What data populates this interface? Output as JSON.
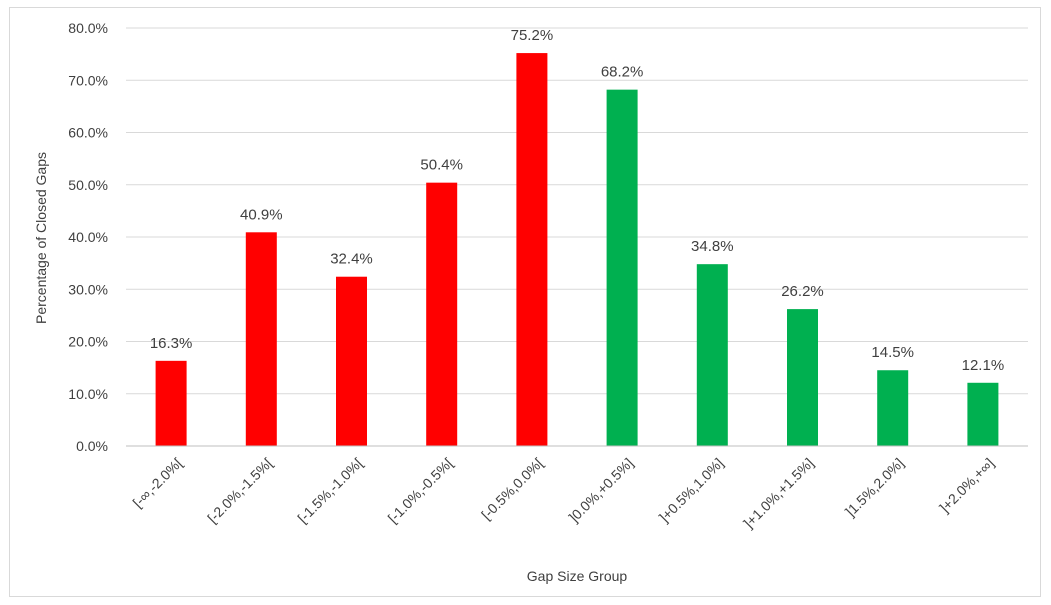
{
  "chart_data": {
    "type": "bar",
    "title": "",
    "xlabel": "Gap Size Group",
    "ylabel": "Percentage of Closed Gaps",
    "ylim": [
      0,
      80
    ],
    "y_ticks": [
      "0.0%",
      "10.0%",
      "20.0%",
      "30.0%",
      "40.0%",
      "50.0%",
      "60.0%",
      "70.0%",
      "80.0%"
    ],
    "grid": true,
    "legend": "none",
    "categories": [
      "[-∞,-2.0%[",
      "[-2.0%,-1.5%[",
      "[-1.5%,-1.0%[",
      "[-1.0%,-0.5%[",
      "[-0.5%,0.0%[",
      "]0.0%,+0.5%]",
      "]+0.5%,1.0%]",
      "]+1.0%,+1.5%]",
      "]1.5%,2.0%]",
      "]+2.0%,+∞]"
    ],
    "values": [
      16.3,
      40.9,
      32.4,
      50.4,
      75.2,
      68.2,
      34.8,
      26.2,
      14.5,
      12.1
    ],
    "value_labels": [
      "16.3%",
      "40.9%",
      "32.4%",
      "50.4%",
      "75.2%",
      "68.2%",
      "34.8%",
      "26.2%",
      "14.5%",
      "12.1%"
    ],
    "colors": [
      "#ff0000",
      "#ff0000",
      "#ff0000",
      "#ff0000",
      "#ff0000",
      "#00b050",
      "#00b050",
      "#00b050",
      "#00b050",
      "#00b050"
    ]
  },
  "style": {
    "grid_color": "#d9d9d9",
    "axis_color": "#bfbfbf"
  }
}
